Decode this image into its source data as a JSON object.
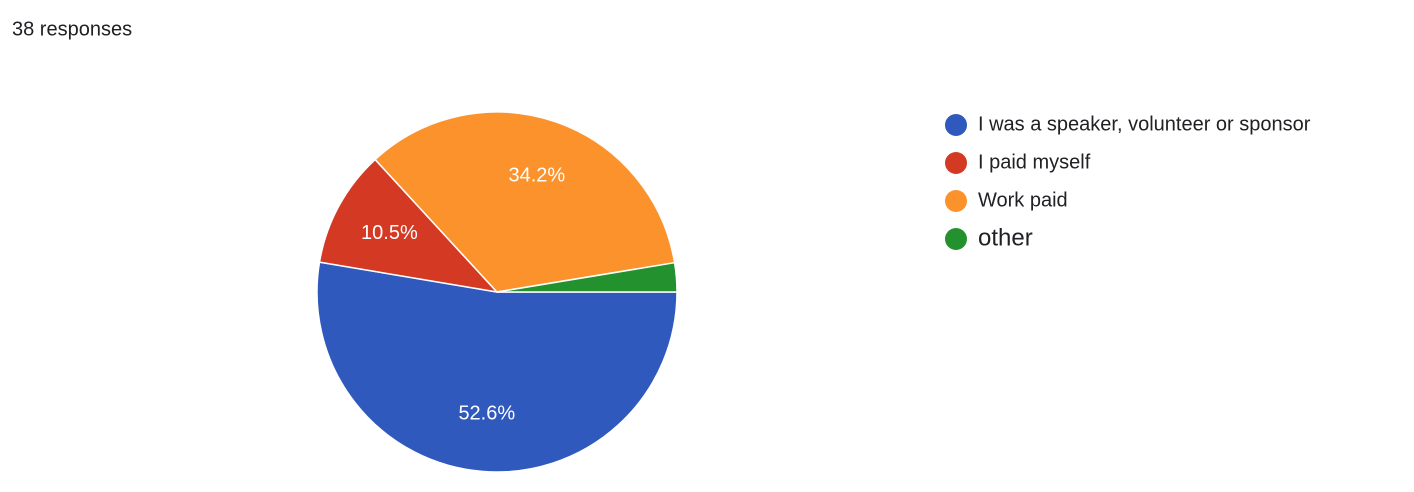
{
  "chart_data": {
    "type": "pie",
    "subtitle": "38 responses",
    "categories": [
      "I was a speaker, volunteer or sponsor",
      "I paid myself",
      "Work paid",
      "other"
    ],
    "values": [
      52.6,
      10.5,
      34.2,
      2.6
    ],
    "value_labels": [
      "52.6%",
      "10.5%",
      "34.2%",
      null
    ],
    "colors": [
      "#3059be",
      "#d43a23",
      "#fb922c",
      "#24912f"
    ],
    "legend": "right"
  }
}
